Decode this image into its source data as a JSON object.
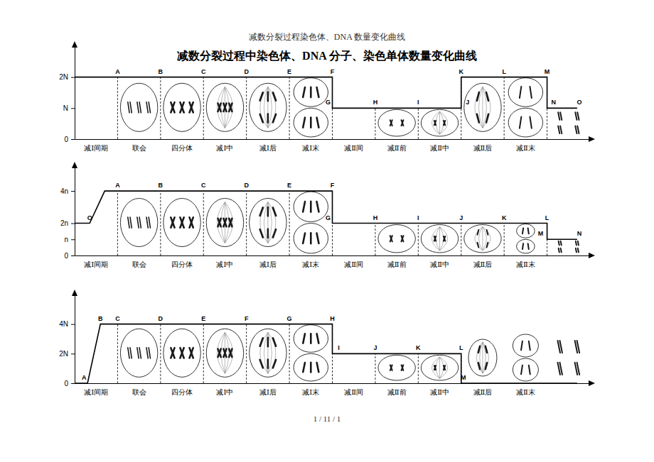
{
  "header": "减数分裂过程染色体、DNA 数量变化曲线",
  "title": "减数分裂过程中染色体、DNA 分子、染色单体数量变化曲线",
  "footer": "1 / 11 / 1",
  "chart_data": [
    {
      "type": "line",
      "categories": [
        "减Ⅰ间期",
        "联会",
        "四分体",
        "减Ⅰ中",
        "减Ⅰ后",
        "减Ⅰ末",
        "减Ⅱ间",
        "减Ⅱ前",
        "减Ⅱ中",
        "减Ⅱ后",
        "减Ⅱ末",
        null
      ],
      "series": [
        {
          "color": "#000000",
          "x": [
            0,
            6,
            6,
            9,
            9,
            11,
            11,
            11.7
          ],
          "values": [
            2,
            2,
            1,
            1,
            2,
            2,
            1,
            1
          ]
        }
      ],
      "xlim": [
        0,
        12
      ],
      "ylim": [
        0,
        3
      ],
      "yticks": [
        0,
        {
          "value": 1,
          "label": "N"
        },
        {
          "value": 2,
          "label": "2N"
        }
      ],
      "annotations": [
        {
          "text": "A",
          "x": 1,
          "y": 2
        },
        {
          "text": "B",
          "x": 2,
          "y": 2
        },
        {
          "text": "C",
          "x": 3,
          "y": 2
        },
        {
          "text": "D",
          "x": 4,
          "y": 2
        },
        {
          "text": "E",
          "x": 5,
          "y": 2
        },
        {
          "text": "F",
          "x": 6,
          "y": 2
        },
        {
          "text": "G",
          "x": 5.9,
          "y": 1
        },
        {
          "text": "H",
          "x": 7,
          "y": 1
        },
        {
          "text": "I",
          "x": 8,
          "y": 1
        },
        {
          "text": "J",
          "x": 9.15,
          "y": 1
        },
        {
          "text": "K",
          "x": 9,
          "y": 2
        },
        {
          "text": "L",
          "x": 10,
          "y": 2
        },
        {
          "text": "M",
          "x": 11,
          "y": 2
        },
        {
          "text": "N",
          "x": 11.15,
          "y": 1
        },
        {
          "text": "O",
          "x": 11.75,
          "y": 1
        }
      ]
    },
    {
      "type": "line",
      "categories": [
        "减Ⅰ间期",
        "联会",
        "四分体",
        "减Ⅰ中",
        "减Ⅰ后",
        "减Ⅰ末",
        "减Ⅱ间",
        "减Ⅱ前",
        "减Ⅱ中",
        "减Ⅱ后",
        "减Ⅱ末",
        null
      ],
      "series": [
        {
          "color": "#000000",
          "x": [
            0,
            0.35,
            0.7,
            6,
            6,
            11,
            11,
            11.7
          ],
          "values": [
            2,
            2,
            4,
            4,
            2,
            2,
            1,
            1
          ]
        }
      ],
      "xlim": [
        0,
        12
      ],
      "ylim": [
        0,
        5.5
      ],
      "yticks": [
        0,
        {
          "value": 1,
          "label": "n"
        },
        {
          "value": 2,
          "label": "2n"
        },
        {
          "value": 4,
          "label": "4n"
        }
      ],
      "annotations": [
        {
          "text": "O",
          "x": 0.35,
          "y": 2
        },
        {
          "text": "A",
          "x": 1,
          "y": 4
        },
        {
          "text": "B",
          "x": 2,
          "y": 4
        },
        {
          "text": "C",
          "x": 3,
          "y": 4
        },
        {
          "text": "D",
          "x": 4,
          "y": 4
        },
        {
          "text": "E",
          "x": 5,
          "y": 4
        },
        {
          "text": "F",
          "x": 6,
          "y": 4
        },
        {
          "text": "G",
          "x": 5.9,
          "y": 2
        },
        {
          "text": "H",
          "x": 7,
          "y": 2
        },
        {
          "text": "I",
          "x": 8,
          "y": 2
        },
        {
          "text": "J",
          "x": 9,
          "y": 2
        },
        {
          "text": "K",
          "x": 10,
          "y": 2
        },
        {
          "text": "L",
          "x": 11,
          "y": 2
        },
        {
          "text": "M",
          "x": 10.85,
          "y": 1
        },
        {
          "text": "N",
          "x": 11.75,
          "y": 1
        }
      ]
    },
    {
      "type": "line",
      "categories": [
        "减Ⅰ间期",
        "联会",
        "四分体",
        "减Ⅰ中",
        "减Ⅰ后",
        "减Ⅰ末",
        "减Ⅱ间",
        "减Ⅱ前",
        "减Ⅱ中",
        "减Ⅱ后",
        "减Ⅱ末",
        null
      ],
      "series": [
        {
          "color": "#000000",
          "x": [
            0,
            0.3,
            0.6,
            6,
            6,
            9,
            9,
            11.7
          ],
          "values": [
            0,
            0,
            4,
            4,
            2,
            2,
            0,
            0
          ]
        }
      ],
      "xlim": [
        0,
        12
      ],
      "ylim": [
        0,
        6
      ],
      "yticks": [
        0,
        {
          "value": 2,
          "label": "2N"
        },
        {
          "value": 4,
          "label": "4N"
        }
      ],
      "annotations": [
        {
          "text": "A",
          "x": 0.22,
          "y": 0
        },
        {
          "text": "B",
          "x": 0.6,
          "y": 4
        },
        {
          "text": "C",
          "x": 1,
          "y": 4
        },
        {
          "text": "D",
          "x": 2,
          "y": 4
        },
        {
          "text": "E",
          "x": 3,
          "y": 4
        },
        {
          "text": "F",
          "x": 4,
          "y": 4
        },
        {
          "text": "G",
          "x": 5,
          "y": 4
        },
        {
          "text": "H",
          "x": 6,
          "y": 4
        },
        {
          "text": "I",
          "x": 6.15,
          "y": 2
        },
        {
          "text": "J",
          "x": 7,
          "y": 2
        },
        {
          "text": "K",
          "x": 8,
          "y": 2
        },
        {
          "text": "L",
          "x": 9,
          "y": 2
        },
        {
          "text": "M",
          "x": 9.05,
          "y": 0
        }
      ]
    }
  ]
}
